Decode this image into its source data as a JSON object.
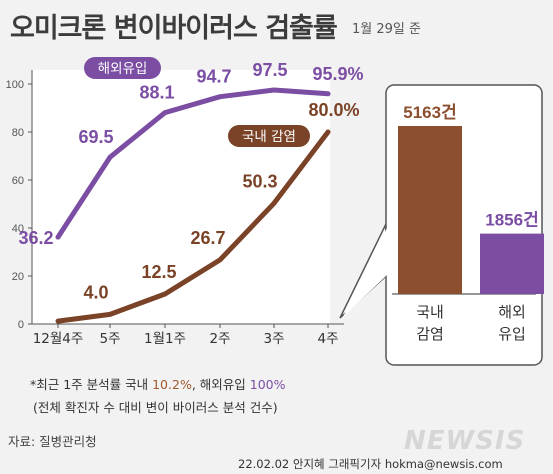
{
  "header": {
    "title": "오미크론 변이바이러스 검출률",
    "date": "1월 29일 준"
  },
  "chart_data": [
    {
      "type": "line",
      "categories": [
        "12월4주",
        "5주",
        "1월1주",
        "2주",
        "3주",
        "4주"
      ],
      "series": [
        {
          "name": "해외유입",
          "values": [
            36.2,
            69.5,
            88.1,
            94.7,
            97.5,
            95.9
          ],
          "color": "#7b4ea3",
          "labels": [
            "36.2",
            "69.5",
            "88.1",
            "94.7",
            "97.5",
            "95.9%"
          ]
        },
        {
          "name": "국내 감염",
          "values": [
            1.2,
            4.0,
            12.5,
            26.7,
            50.3,
            80.0
          ],
          "color": "#7a4327",
          "labels": [
            "",
            "4.0",
            "12.5",
            "26.7",
            "50.3",
            "80.0%"
          ]
        }
      ],
      "ylim": [
        0,
        100
      ],
      "yticks": [
        "0",
        "20",
        "40",
        "60",
        "80",
        "100"
      ],
      "grid": false
    },
    {
      "type": "bar",
      "categories": [
        "국내\n감염",
        "해외\n유입"
      ],
      "values": [
        5163,
        1856
      ],
      "labels": [
        "5163건",
        "1856건"
      ],
      "colors": [
        "#8c4f30",
        "#7b4ea3"
      ]
    }
  ],
  "footnote": {
    "line1_prefix": "*최근 1주 분석률 국내 ",
    "domestic_rate": "10.2%",
    "line1_mid": ", 해외유입 ",
    "abroad_rate": "100%",
    "line2": "(전체 확진자 수 대비 변이 바이러스 분석 건수)"
  },
  "source": "자료: 질병관리청",
  "credit": "22.02.02 안지혜 그래픽기자 hokma@newsis.com",
  "logo": "NEWSIS"
}
